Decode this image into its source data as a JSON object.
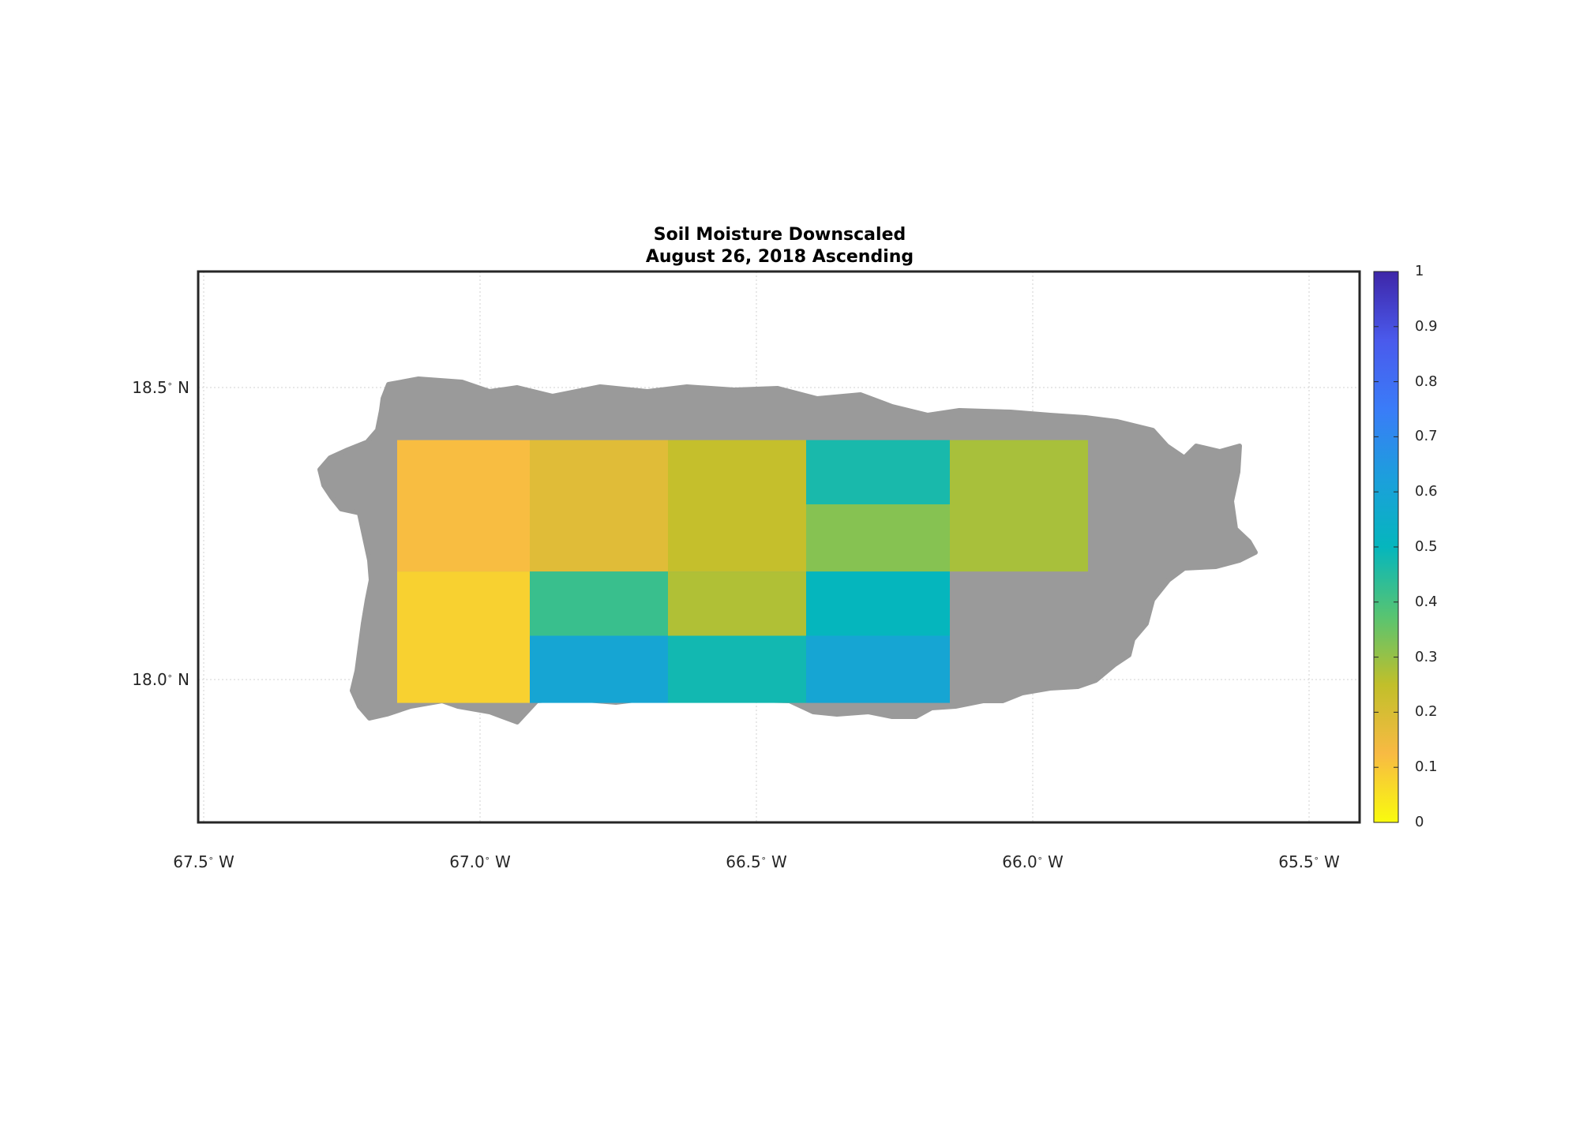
{
  "title": {
    "line1": "Soil Moisture Downscaled",
    "line2": "August 26, 2018 Ascending"
  },
  "map": {
    "region_extent": {
      "lon": [
        -67.5,
        -65.4
      ],
      "lat": [
        17.75,
        18.7
      ]
    },
    "grid": true,
    "land_mask_color": "#9a9a9a",
    "background_color": "#ffffff",
    "lat_ticks": [
      {
        "deg": "18.5",
        "hem": "N",
        "value": 18.5
      },
      {
        "deg": "18.0",
        "hem": "N",
        "value": 18.0
      }
    ],
    "lon_ticks": [
      {
        "deg": "67.5",
        "hem": "W",
        "value": -67.5
      },
      {
        "deg": "67.0",
        "hem": "W",
        "value": -67.0
      },
      {
        "deg": "66.5",
        "hem": "W",
        "value": -66.5
      },
      {
        "deg": "66.0",
        "hem": "W",
        "value": -66.0
      },
      {
        "deg": "65.5",
        "hem": "W",
        "value": -65.5
      }
    ],
    "data_tiles": [
      {
        "lon": [
          -67.15,
          -66.91
        ],
        "lat": [
          18.185,
          18.41
        ],
        "value": 0.12
      },
      {
        "lon": [
          -67.15,
          -66.91
        ],
        "lat": [
          17.96,
          18.185
        ],
        "value": 0.08
      },
      {
        "lon": [
          -66.91,
          -66.66
        ],
        "lat": [
          18.185,
          18.41
        ],
        "value": 0.18
      },
      {
        "lon": [
          -66.91,
          -66.66
        ],
        "lat": [
          18.075,
          18.185
        ],
        "value": 0.42
      },
      {
        "lon": [
          -66.91,
          -66.66
        ],
        "lat": [
          17.96,
          18.075
        ],
        "value": 0.59
      },
      {
        "lon": [
          -66.66,
          -66.41
        ],
        "lat": [
          18.185,
          18.41
        ],
        "value": 0.24
      },
      {
        "lon": [
          -66.66,
          -66.41
        ],
        "lat": [
          18.075,
          18.185
        ],
        "value": 0.27
      },
      {
        "lon": [
          -66.66,
          -66.41
        ],
        "lat": [
          17.96,
          18.075
        ],
        "value": 0.48
      },
      {
        "lon": [
          -66.41,
          -66.15
        ],
        "lat": [
          18.3,
          18.41
        ],
        "value": 0.47
      },
      {
        "lon": [
          -66.41,
          -66.15
        ],
        "lat": [
          18.185,
          18.3
        ],
        "value": 0.32
      },
      {
        "lon": [
          -66.41,
          -66.15
        ],
        "lat": [
          18.075,
          18.185
        ],
        "value": 0.5
      },
      {
        "lon": [
          -66.41,
          -66.15
        ],
        "lat": [
          17.96,
          18.075
        ],
        "value": 0.59
      },
      {
        "lon": [
          -66.15,
          -65.9
        ],
        "lat": [
          18.185,
          18.41
        ],
        "value": 0.28
      }
    ]
  },
  "colorbar": {
    "min": 0,
    "max": 1,
    "ticks": [
      "0",
      "0.1",
      "0.2",
      "0.3",
      "0.4",
      "0.5",
      "0.6",
      "0.7",
      "0.8",
      "0.9",
      "1"
    ],
    "colors": [
      "#f9fb0e",
      "#f8ba43",
      "#c1bf2a",
      "#57c472",
      "#05b6bd",
      "#1c9fdc",
      "#3a7cf8",
      "#4a5aec",
      "#3e26a8"
    ],
    "colormap": "parula"
  }
}
